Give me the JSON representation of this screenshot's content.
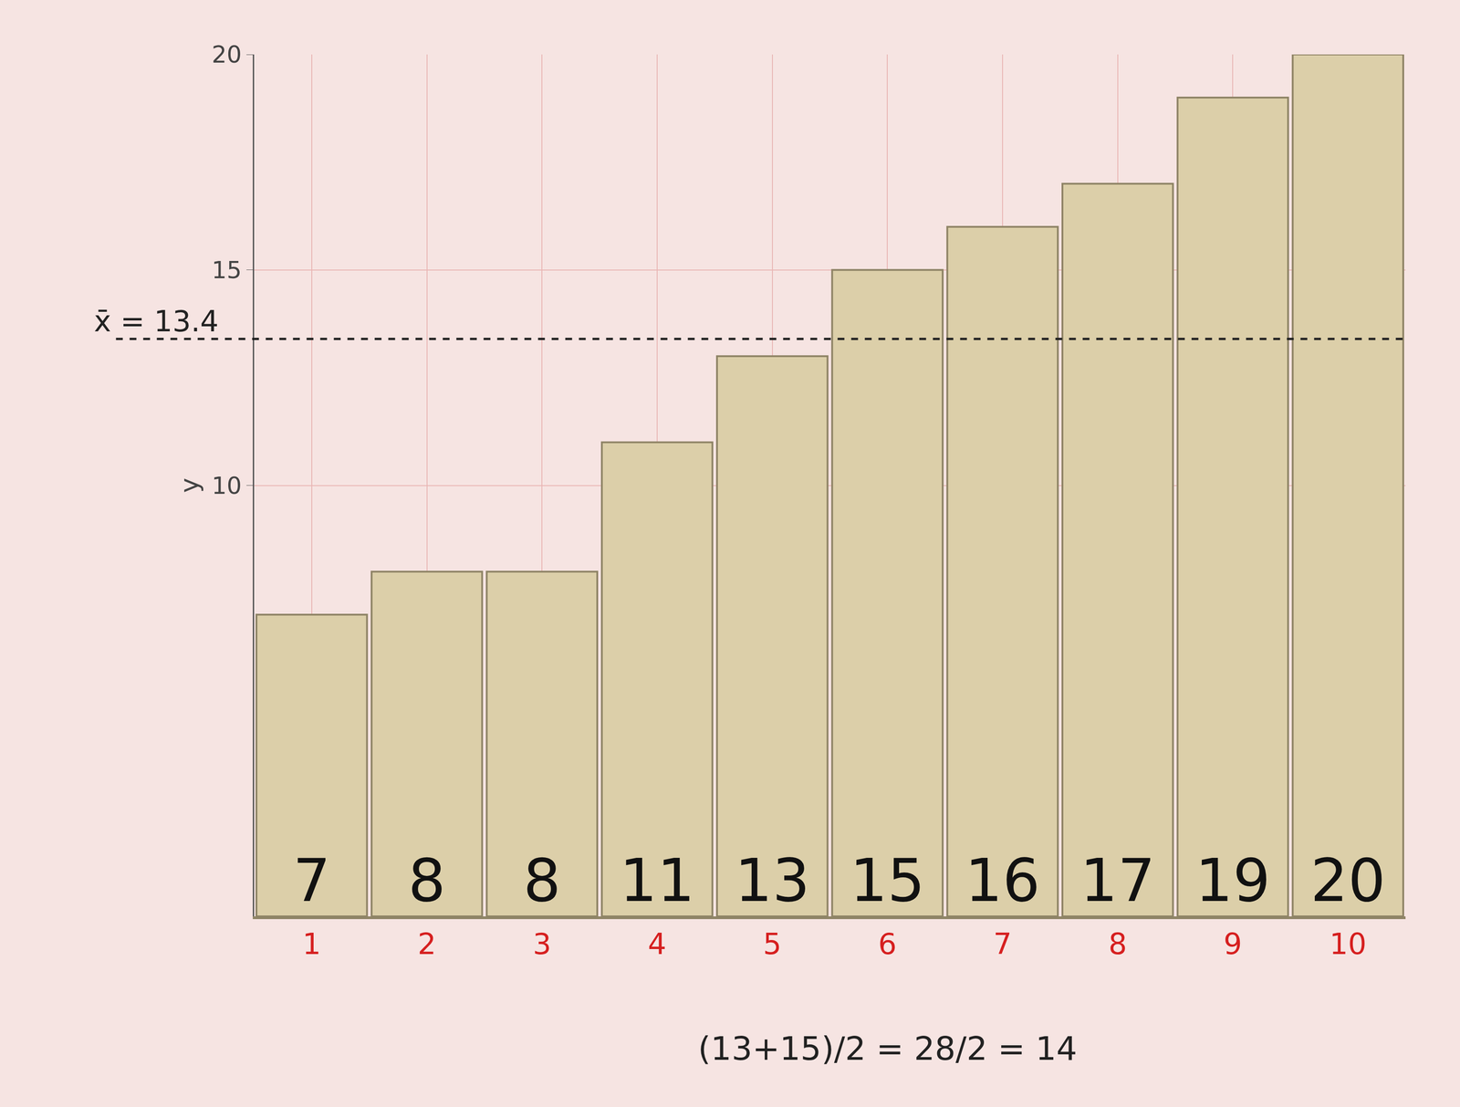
{
  "chart_data": {
    "type": "bar",
    "x": [
      1,
      2,
      3,
      4,
      5,
      6,
      7,
      8,
      9,
      10
    ],
    "values": [
      7,
      8,
      8,
      11,
      13,
      15,
      16,
      17,
      19,
      20
    ],
    "color": "#dccfa9",
    "data_labels": true,
    "xlim": [
      0.5,
      10.5
    ],
    "xticks": [
      1,
      2,
      3,
      4,
      5,
      6,
      7,
      8,
      9,
      10
    ],
    "ylim": [
      0,
      20
    ],
    "yticks": [
      10,
      15,
      20
    ],
    "y_label": "y",
    "grid": true,
    "reference_line": {
      "value": 13.4,
      "label": "x̄ = 13.4",
      "line_style": "dashed"
    },
    "annotations": [
      "(13+15)/2 = 28/2 = 14"
    ]
  }
}
